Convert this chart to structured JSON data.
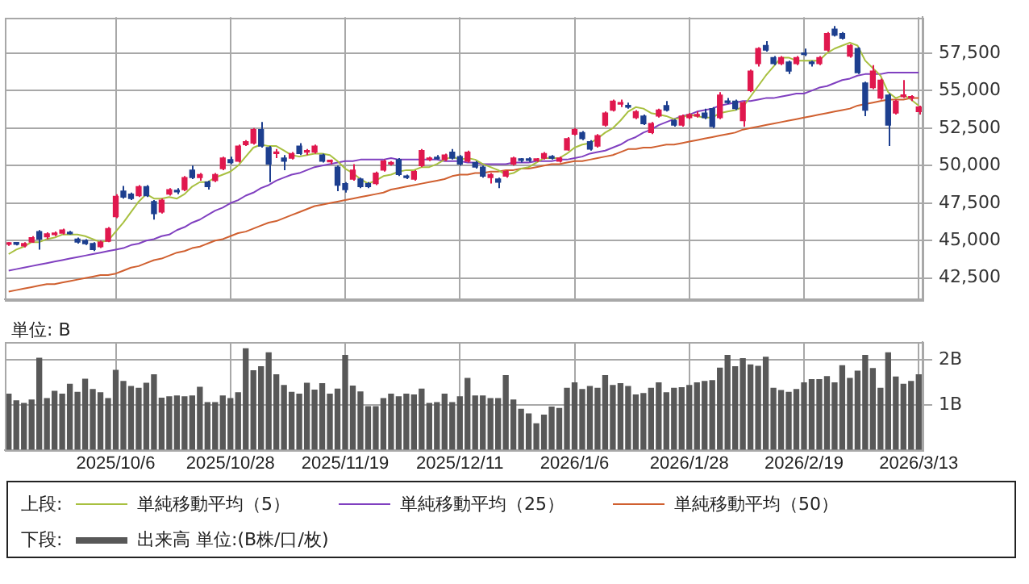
{
  "chart_data": [
    {
      "type": "candlestick",
      "categories": [
        null,
        null,
        null,
        null,
        null,
        null,
        null,
        null,
        null,
        null,
        null,
        null,
        null,
        null,
        "2025/10/6",
        null,
        null,
        null,
        null,
        null,
        null,
        null,
        null,
        null,
        null,
        null,
        null,
        null,
        null,
        "2025/10/28",
        null,
        null,
        null,
        null,
        null,
        null,
        null,
        null,
        null,
        null,
        null,
        null,
        null,
        null,
        "2025/11/19",
        null,
        null,
        null,
        null,
        null,
        null,
        null,
        null,
        null,
        null,
        null,
        null,
        null,
        null,
        "2025/12/11",
        null,
        null,
        null,
        null,
        null,
        null,
        null,
        null,
        null,
        null,
        null,
        null,
        null,
        null,
        "2026/1/6",
        null,
        null,
        null,
        null,
        null,
        null,
        null,
        null,
        null,
        null,
        null,
        null,
        null,
        null,
        "2026/1/28",
        null,
        null,
        null,
        null,
        null,
        null,
        null,
        null,
        null,
        null,
        null,
        null,
        null,
        null,
        "2026/2/19",
        null,
        null,
        null,
        null,
        null,
        null,
        null,
        null,
        null,
        null,
        null,
        null,
        null,
        null,
        "2026/3/13"
      ],
      "ohlc": [
        [
          44750,
          44900,
          44650,
          44800
        ],
        [
          44780,
          44880,
          44680,
          44760
        ],
        [
          44650,
          44900,
          44550,
          44800
        ],
        [
          44900,
          45300,
          44850,
          45200
        ],
        [
          45600,
          45700,
          44400,
          45100
        ],
        [
          45250,
          45550,
          45100,
          45450
        ],
        [
          45400,
          45600,
          45300,
          45500
        ],
        [
          45500,
          45800,
          45400,
          45700
        ],
        [
          45500,
          45650,
          45400,
          45450
        ],
        [
          45100,
          45200,
          44800,
          44900
        ],
        [
          45000,
          45100,
          44700,
          44800
        ],
        [
          44800,
          44900,
          44300,
          44400
        ],
        [
          44600,
          45000,
          44500,
          44900
        ],
        [
          44950,
          45900,
          44900,
          45800
        ],
        [
          46600,
          48100,
          46500,
          47950
        ],
        [
          48300,
          48650,
          47800,
          47900
        ],
        [
          48100,
          48200,
          47700,
          47800
        ],
        [
          48000,
          48700,
          47900,
          48600
        ],
        [
          48600,
          48700,
          47900,
          48000
        ],
        [
          47600,
          47700,
          46400,
          46800
        ],
        [
          46900,
          47800,
          46800,
          47700
        ],
        [
          48100,
          48500,
          48000,
          48400
        ],
        [
          48300,
          48500,
          48100,
          48250
        ],
        [
          48400,
          49300,
          48300,
          49200
        ],
        [
          49700,
          50000,
          49100,
          49200
        ],
        [
          49200,
          49500,
          49000,
          49400
        ],
        [
          48900,
          49000,
          48400,
          48600
        ],
        [
          49000,
          49500,
          48900,
          49400
        ],
        [
          49800,
          50600,
          49700,
          50500
        ],
        [
          50400,
          50600,
          50100,
          50200
        ],
        [
          50300,
          51400,
          50200,
          51300
        ],
        [
          51400,
          51700,
          51300,
          51600
        ],
        [
          51500,
          52500,
          51400,
          52400
        ],
        [
          52400,
          52900,
          51200,
          51300
        ],
        [
          51200,
          51300,
          48900,
          50100
        ],
        [
          50800,
          51100,
          50500,
          50900
        ],
        [
          50500,
          50700,
          49700,
          50300
        ],
        [
          50500,
          50900,
          50400,
          50800
        ],
        [
          51300,
          51500,
          50700,
          50800
        ],
        [
          50900,
          51100,
          50700,
          50900
        ],
        [
          50900,
          51400,
          50800,
          51300
        ],
        [
          50700,
          50800,
          50200,
          50300
        ],
        [
          50250,
          50400,
          50100,
          50300
        ],
        [
          49900,
          50000,
          48300,
          48700
        ],
        [
          48800,
          48900,
          48200,
          48400
        ],
        [
          49100,
          50100,
          49000,
          49700
        ],
        [
          49100,
          49200,
          48500,
          48600
        ],
        [
          48800,
          48900,
          48500,
          48600
        ],
        [
          48800,
          49600,
          48700,
          49500
        ],
        [
          49700,
          50400,
          49600,
          50300
        ],
        [
          50100,
          50300,
          50000,
          50200
        ],
        [
          50400,
          50500,
          49300,
          49400
        ],
        [
          49300,
          49400,
          49100,
          49200
        ],
        [
          49100,
          49700,
          49000,
          49600
        ],
        [
          50000,
          51100,
          49900,
          51000
        ],
        [
          50400,
          50600,
          50300,
          50450
        ],
        [
          50500,
          50700,
          50400,
          50450
        ],
        [
          50400,
          50800,
          50300,
          50700
        ],
        [
          50900,
          51100,
          50400,
          50500
        ],
        [
          50600,
          50700,
          50000,
          50100
        ],
        [
          50300,
          51000,
          50200,
          50900
        ],
        [
          50200,
          50300,
          49800,
          49900
        ],
        [
          49900,
          50000,
          49200,
          49300
        ],
        [
          49200,
          49500,
          48800,
          49400
        ],
        [
          49100,
          49200,
          48500,
          48900
        ],
        [
          49300,
          49700,
          49200,
          49600
        ],
        [
          50100,
          50600,
          50000,
          50500
        ],
        [
          50400,
          50500,
          50200,
          50350
        ],
        [
          50450,
          50550,
          50250,
          50350
        ],
        [
          50350,
          50500,
          50250,
          50400
        ],
        [
          50500,
          50900,
          50400,
          50800
        ],
        [
          50600,
          50700,
          50400,
          50500
        ],
        [
          50300,
          50600,
          50200,
          50500
        ],
        [
          51050,
          51900,
          51000,
          51800
        ],
        [
          52100,
          52500,
          52000,
          52400
        ],
        [
          52200,
          52300,
          51700,
          51800
        ],
        [
          51600,
          51700,
          51000,
          51100
        ],
        [
          51300,
          52100,
          51200,
          52000
        ],
        [
          52700,
          53600,
          52600,
          53500
        ],
        [
          53700,
          54400,
          53600,
          54300
        ],
        [
          54100,
          54400,
          53900,
          54200
        ],
        [
          54000,
          54200,
          53800,
          53900
        ],
        [
          53200,
          53700,
          53100,
          53600
        ],
        [
          53300,
          53400,
          52700,
          52800
        ],
        [
          52200,
          52900,
          52100,
          52800
        ],
        [
          53300,
          53800,
          53200,
          53700
        ],
        [
          54000,
          54300,
          53600,
          53700
        ],
        [
          53000,
          53100,
          52600,
          52700
        ],
        [
          52700,
          53400,
          52600,
          53300
        ],
        [
          53200,
          53500,
          53100,
          53400
        ],
        [
          53300,
          53600,
          53200,
          53400
        ],
        [
          53500,
          53800,
          53100,
          53200
        ],
        [
          53800,
          53900,
          52500,
          52600
        ],
        [
          53200,
          54900,
          53100,
          54700
        ],
        [
          54300,
          54500,
          54100,
          54200
        ],
        [
          54300,
          54400,
          53700,
          53800
        ],
        [
          53000,
          54300,
          52600,
          54200
        ],
        [
          55000,
          56400,
          54900,
          56300
        ],
        [
          56800,
          57900,
          56600,
          57800
        ],
        [
          58000,
          58300,
          57600,
          57700
        ],
        [
          57200,
          57300,
          56700,
          56800
        ],
        [
          56800,
          57300,
          56700,
          57200
        ],
        [
          56900,
          57000,
          56100,
          56300
        ],
        [
          56800,
          57300,
          56700,
          57200
        ],
        [
          57500,
          57800,
          57300,
          57400
        ],
        [
          56900,
          57000,
          56600,
          56800
        ],
        [
          56800,
          57300,
          56700,
          57200
        ],
        [
          57700,
          58900,
          57600,
          58800
        ],
        [
          59100,
          59300,
          58600,
          58700
        ],
        [
          58800,
          58900,
          58400,
          58500
        ],
        [
          57300,
          58100,
          57200,
          58000
        ],
        [
          57800,
          57900,
          56100,
          56200
        ],
        [
          55500,
          55600,
          53300,
          53700
        ],
        [
          55200,
          56700,
          55100,
          56300
        ],
        [
          54500,
          55800,
          54400,
          55700
        ],
        [
          54700,
          54800,
          51300,
          52700
        ],
        [
          53500,
          54400,
          53400,
          54300
        ],
        [
          54600,
          55700,
          54500,
          54700
        ],
        [
          54500,
          54700,
          54300,
          54500
        ],
        [
          53600,
          54000,
          53400,
          53900
        ]
      ],
      "colors": [
        "#e0184e",
        "#1d3f8f",
        "#e0184e",
        "#e0184e",
        "#1d3f8f",
        "#e0184e",
        "#e0184e",
        "#e0184e",
        "#1d3f8f",
        "#1d3f8f",
        "#1d3f8f",
        "#1d3f8f",
        "#e0184e",
        "#e0184e",
        "#e0184e",
        "#1d3f8f",
        "#1d3f8f",
        "#e0184e",
        "#1d3f8f",
        "#1d3f8f",
        "#e0184e",
        "#e0184e",
        "#1d3f8f",
        "#e0184e",
        "#1d3f8f",
        "#e0184e",
        "#1d3f8f",
        "#e0184e",
        "#e0184e",
        "#1d3f8f",
        "#e0184e",
        "#e0184e",
        "#e0184e",
        "#1d3f8f",
        "#1d3f8f",
        "#e0184e",
        "#1d3f8f",
        "#e0184e",
        "#1d3f8f",
        "#e0184e",
        "#e0184e",
        "#1d3f8f",
        "#e0184e",
        "#1d3f8f",
        "#1d3f8f",
        "#e0184e",
        "#1d3f8f",
        "#1d3f8f",
        "#e0184e",
        "#e0184e",
        "#e0184e",
        "#1d3f8f",
        "#1d3f8f",
        "#e0184e",
        "#e0184e",
        "#e0184e",
        "#1d3f8f",
        "#e0184e",
        "#1d3f8f",
        "#1d3f8f",
        "#e0184e",
        "#1d3f8f",
        "#1d3f8f",
        "#e0184e",
        "#1d3f8f",
        "#e0184e",
        "#e0184e",
        "#1d3f8f",
        "#1d3f8f",
        "#e0184e",
        "#e0184e",
        "#1d3f8f",
        "#e0184e",
        "#e0184e",
        "#e0184e",
        "#1d3f8f",
        "#1d3f8f",
        "#e0184e",
        "#e0184e",
        "#e0184e",
        "#e0184e",
        "#1d3f8f",
        "#e0184e",
        "#1d3f8f",
        "#e0184e",
        "#e0184e",
        "#1d3f8f",
        "#1d3f8f",
        "#e0184e",
        "#e0184e",
        "#e0184e",
        "#1d3f8f",
        "#1d3f8f",
        "#e0184e",
        "#1d3f8f",
        "#1d3f8f",
        "#e0184e",
        "#e0184e",
        "#e0184e",
        "#1d3f8f",
        "#1d3f8f",
        "#e0184e",
        "#1d3f8f",
        "#e0184e",
        "#1d3f8f",
        "#1d3f8f",
        "#e0184e",
        "#e0184e",
        "#1d3f8f",
        "#1d3f8f",
        "#e0184e",
        "#1d3f8f",
        "#1d3f8f",
        "#e0184e",
        "#e0184e",
        "#1d3f8f",
        "#e0184e",
        "#e0184e",
        "#e0184e",
        "#e0184e"
      ],
      "series": [
        {
          "name": "単純移動平均（5）",
          "type": "line",
          "color": "#a8c040",
          "values": [
            44100,
            44400,
            44600,
            44900,
            44900,
            45100,
            45200,
            45400,
            45400,
            45400,
            45300,
            45100,
            44900,
            45000,
            45600,
            46200,
            46900,
            47600,
            48100,
            47800,
            47800,
            47900,
            47800,
            48100,
            48600,
            48900,
            48900,
            49200,
            49400,
            49600,
            50000,
            50600,
            51200,
            51400,
            51300,
            51300,
            51000,
            50700,
            50600,
            50700,
            50800,
            50800,
            50700,
            50300,
            49800,
            49500,
            49100,
            48800,
            49000,
            49300,
            49400,
            49600,
            49700,
            49700,
            49900,
            49900,
            50100,
            50400,
            50600,
            50400,
            50500,
            50400,
            50100,
            49900,
            49700,
            49400,
            49500,
            49800,
            49900,
            50200,
            50500,
            50500,
            50500,
            50800,
            51200,
            51400,
            51500,
            51800,
            52200,
            52500,
            53000,
            53600,
            53900,
            53800,
            53500,
            53400,
            53300,
            53100,
            53200,
            53400,
            53300,
            53200,
            53200,
            53500,
            53600,
            53700,
            53900,
            54600,
            55300,
            56000,
            56600,
            57200,
            57200,
            57000,
            57000,
            57000,
            57000,
            57500,
            57800,
            58000,
            58200,
            58000,
            57000,
            56500,
            56000,
            54900,
            54500,
            54700,
            54400,
            54000
          ]
        },
        {
          "name": "単純移動平均（25）",
          "type": "line",
          "color": "#8040c0",
          "values": [
            43000,
            43100,
            43200,
            43300,
            43400,
            43500,
            43600,
            43700,
            43800,
            43900,
            44000,
            44100,
            44200,
            44300,
            44400,
            44500,
            44700,
            44800,
            45000,
            45100,
            45300,
            45400,
            45700,
            45900,
            46200,
            46400,
            46700,
            47000,
            47200,
            47500,
            47700,
            48000,
            48200,
            48500,
            48700,
            49000,
            49200,
            49400,
            49500,
            49700,
            49900,
            50000,
            50100,
            50200,
            50300,
            50300,
            50400,
            50400,
            50400,
            50400,
            50500,
            50400,
            50400,
            50400,
            50400,
            50400,
            50400,
            50300,
            50300,
            50300,
            50200,
            50200,
            50100,
            50100,
            50100,
            50100,
            50200,
            50200,
            50200,
            50300,
            50300,
            50300,
            50400,
            50400,
            50500,
            50600,
            50800,
            50900,
            51000,
            51200,
            51400,
            51700,
            51900,
            52200,
            52400,
            52700,
            52900,
            53100,
            53300,
            53400,
            53600,
            53700,
            53800,
            54000,
            54100,
            54200,
            54300,
            54300,
            54400,
            54500,
            54500,
            54600,
            54700,
            54800,
            54800,
            55000,
            55200,
            55300,
            55500,
            55700,
            55800,
            56000,
            56100,
            56100,
            56100,
            56200,
            56200,
            56200,
            56200,
            56200
          ]
        },
        {
          "name": "単純移動平均（50）",
          "type": "line",
          "color": "#d06030",
          "values": [
            41600,
            41700,
            41800,
            41900,
            42000,
            42100,
            42100,
            42200,
            42300,
            42400,
            42500,
            42600,
            42700,
            42700,
            42800,
            43000,
            43200,
            43300,
            43500,
            43700,
            43800,
            44000,
            44200,
            44300,
            44500,
            44600,
            44800,
            45000,
            45100,
            45300,
            45500,
            45600,
            45800,
            46000,
            46200,
            46300,
            46500,
            46700,
            46900,
            47100,
            47300,
            47400,
            47500,
            47600,
            47700,
            47800,
            47900,
            48000,
            48100,
            48200,
            48400,
            48500,
            48600,
            48700,
            48800,
            48900,
            49000,
            49100,
            49300,
            49400,
            49400,
            49500,
            49500,
            49600,
            49600,
            49700,
            49700,
            49800,
            49800,
            49900,
            50000,
            50100,
            50100,
            50200,
            50300,
            50300,
            50400,
            50500,
            50600,
            50700,
            50900,
            51100,
            51100,
            51200,
            51200,
            51300,
            51400,
            51400,
            51500,
            51600,
            51700,
            51800,
            51900,
            52000,
            52100,
            52200,
            52400,
            52500,
            52600,
            52700,
            52800,
            52900,
            53000,
            53100,
            53200,
            53300,
            53400,
            53500,
            53600,
            53700,
            53800,
            54000,
            54100,
            54200,
            54300,
            54400,
            54400,
            54400,
            54500,
            54500
          ]
        }
      ],
      "ylim": [
        41100,
        59900
      ],
      "yticks": [
        {
          "value": 42500,
          "label": "42,500"
        },
        {
          "value": 45000,
          "label": "45,000"
        },
        {
          "value": 47500,
          "label": "47,500"
        },
        {
          "value": 50000,
          "label": "50,000"
        },
        {
          "value": 52500,
          "label": "52,500"
        },
        {
          "value": 55000,
          "label": "55,000"
        },
        {
          "value": 57500,
          "label": "57,500"
        }
      ],
      "grid": true,
      "legend": "bottom",
      "legend_title": "上段:",
      "tick_labels": "y",
      "marker": "none"
    },
    {
      "type": "bar",
      "categories": [
        null,
        null,
        null,
        null,
        null,
        null,
        null,
        null,
        null,
        null,
        null,
        null,
        null,
        null,
        "2025/10/6",
        null,
        null,
        null,
        null,
        null,
        null,
        null,
        null,
        null,
        null,
        null,
        null,
        null,
        null,
        "2025/10/28",
        null,
        null,
        null,
        null,
        null,
        null,
        null,
        null,
        null,
        null,
        null,
        null,
        null,
        null,
        "2025/11/19",
        null,
        null,
        null,
        null,
        null,
        null,
        null,
        null,
        null,
        null,
        null,
        null,
        null,
        null,
        "2025/12/11",
        null,
        null,
        null,
        null,
        null,
        null,
        null,
        null,
        null,
        null,
        null,
        null,
        null,
        null,
        "2026/1/6",
        null,
        null,
        null,
        null,
        null,
        null,
        null,
        null,
        null,
        null,
        null,
        null,
        null,
        null,
        "2026/1/28",
        null,
        null,
        null,
        null,
        null,
        null,
        null,
        null,
        null,
        null,
        null,
        null,
        null,
        null,
        "2026/2/19",
        null,
        null,
        null,
        null,
        null,
        null,
        null,
        null,
        null,
        null,
        null,
        null,
        null,
        null,
        "2026/3/13"
      ],
      "series": [
        {
          "name": "出来高 単位:(B株/口/枚)",
          "color": "#585858",
          "values": [
            1.24,
            1.09,
            1.03,
            1.11,
            2.04,
            1.14,
            1.3,
            1.24,
            1.46,
            1.28,
            1.57,
            1.34,
            1.27,
            1.14,
            1.77,
            1.52,
            1.41,
            1.37,
            1.48,
            1.67,
            1.15,
            1.18,
            1.2,
            1.18,
            1.2,
            1.39,
            1.05,
            1.05,
            1.2,
            1.14,
            1.27,
            2.25,
            1.76,
            1.85,
            2.16,
            1.67,
            1.43,
            1.28,
            1.24,
            1.48,
            1.33,
            1.47,
            1.24,
            1.35,
            2.1,
            1.42,
            1.29,
            0.96,
            0.96,
            1.14,
            1.24,
            1.18,
            1.24,
            1.22,
            1.35,
            1.03,
            1.05,
            1.24,
            1.05,
            1.18,
            1.59,
            1.2,
            1.2,
            1.14,
            1.14,
            1.65,
            1.11,
            0.9,
            0.8,
            0.58,
            0.77,
            0.95,
            0.92,
            1.37,
            1.49,
            1.34,
            1.41,
            1.37,
            1.65,
            1.43,
            1.47,
            1.41,
            1.22,
            1.25,
            1.37,
            1.49,
            1.27,
            1.37,
            1.38,
            1.43,
            1.49,
            1.52,
            1.54,
            1.82,
            2.1,
            1.85,
            2.03,
            1.89,
            1.86,
            2.06,
            1.37,
            1.32,
            1.28,
            1.34,
            1.49,
            1.56,
            1.56,
            1.63,
            1.49,
            1.87,
            1.59,
            1.75,
            2.1,
            1.81,
            1.37,
            2.16,
            1.62,
            1.46,
            1.52,
            1.67
          ]
        }
      ],
      "ylim": [
        0,
        2.4
      ],
      "yticks": [
        {
          "value": 1,
          "label": "1B"
        },
        {
          "value": 2,
          "label": "2B"
        }
      ],
      "ylabel": "単位: B",
      "grid": true,
      "legend": "bottom",
      "legend_title": "下段:"
    }
  ]
}
